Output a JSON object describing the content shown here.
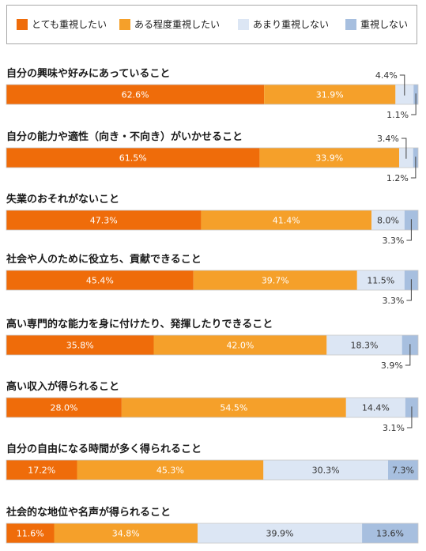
{
  "chart_data": {
    "type": "bar",
    "orientation": "horizontal",
    "stacked": true,
    "unit": "%",
    "legend_position": "top",
    "series": [
      {
        "name": "とても重視したい",
        "color": "#ef6c0a"
      },
      {
        "name": "ある程度重視したい",
        "color": "#f5a02a"
      },
      {
        "name": "あまり重視しない",
        "color": "#dce6f4"
      },
      {
        "name": "重視しない",
        "color": "#a7bfdf"
      }
    ],
    "categories": [
      "自分の興味や好みにあっていること",
      "自分の能力や適性（向き・不向き）がいかせること",
      "失業のおそれがないこと",
      "社会や人のために役立ち、貢献できること",
      "高い専門的な能力を身に付けたり、発揮したりできること",
      "高い収入が得られること",
      "自分の自由になる時間が多く得られること",
      "社会的な地位や名声が得られること"
    ],
    "values": [
      [
        62.6,
        31.9,
        4.4,
        1.1
      ],
      [
        61.5,
        33.9,
        3.4,
        1.2
      ],
      [
        47.3,
        41.4,
        8.0,
        3.3
      ],
      [
        45.4,
        39.7,
        11.5,
        3.3
      ],
      [
        35.8,
        42.0,
        18.3,
        3.9
      ],
      [
        28.0,
        54.5,
        14.4,
        3.1
      ],
      [
        17.2,
        45.3,
        30.3,
        7.3
      ],
      [
        11.6,
        34.8,
        39.9,
        13.6
      ]
    ],
    "labels": [
      [
        "62.6%",
        "31.9%",
        "4.4%",
        "1.1%"
      ],
      [
        "61.5%",
        "33.9%",
        "3.4%",
        "1.2%"
      ],
      [
        "47.3%",
        "41.4%",
        "8.0%",
        "3.3%"
      ],
      [
        "45.4%",
        "39.7%",
        "11.5%",
        "3.3%"
      ],
      [
        "35.8%",
        "42.0%",
        "18.3%",
        "3.9%"
      ],
      [
        "28.0%",
        "54.5%",
        "14.4%",
        "3.1%"
      ],
      [
        "17.2%",
        "45.3%",
        "30.3%",
        "7.3%"
      ],
      [
        "11.6%",
        "34.8%",
        "39.9%",
        "13.6%"
      ]
    ]
  }
}
